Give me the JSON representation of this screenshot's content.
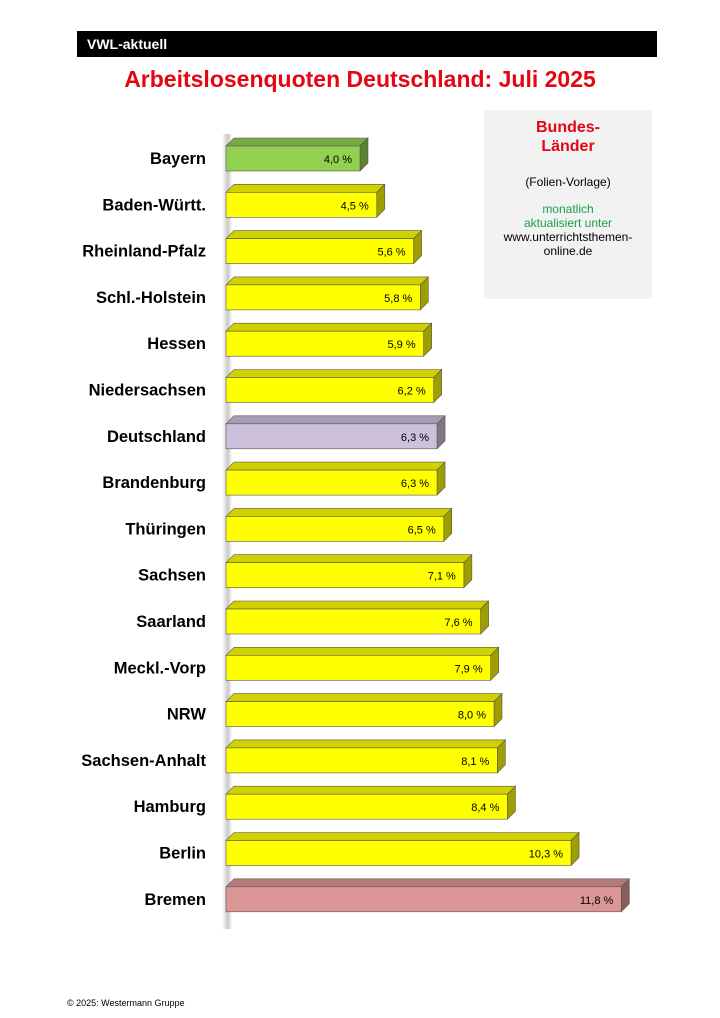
{
  "header": {
    "label": "VWL-aktuell"
  },
  "title": "Arbeitslosenquoten Deutschland: Juli 2025",
  "info_box": {
    "title_line1": "Bundes-",
    "title_line2": "Länder",
    "subtitle": "(Folien-Vorlage)",
    "note_line1": "monatlich",
    "note_line2": "aktualisiert unter",
    "url_line1": "www.unterrichtsthemen-",
    "url_line2": "online.de"
  },
  "footer": "© 2025: Westermann Gruppe",
  "colors": {
    "title": "#e30613",
    "default_bar": "#ffff00",
    "bayern_bar": "#92d050",
    "deutschland_bar": "#ccc0da",
    "bremen_bar": "#da9694",
    "info_green": "#19a04a"
  },
  "chart_data": {
    "type": "bar",
    "orientation": "horizontal",
    "title": "Arbeitslosenquoten Deutschland: Juli 2025",
    "categories": [
      "Bayern",
      "Baden-Württ.",
      "Rheinland-Pfalz",
      "Schl.-Holstein",
      "Hessen",
      "Niedersachsen",
      "Deutschland",
      "Brandenburg",
      "Thüringen",
      "Sachsen",
      "Saarland",
      "Meckl.-Vorp",
      "NRW",
      "Sachsen-Anhalt",
      "Hamburg",
      "Berlin",
      "Bremen"
    ],
    "values": [
      4.0,
      4.5,
      5.6,
      5.8,
      5.9,
      6.2,
      6.3,
      6.3,
      6.5,
      7.1,
      7.6,
      7.9,
      8.0,
      8.1,
      8.4,
      10.3,
      11.8
    ],
    "value_labels": [
      "4,0 %",
      "4,5 %",
      "5,6 %",
      "5,8 %",
      "5,9 %",
      "6,2 %",
      "6,3 %",
      "6,3 %",
      "6,5 %",
      "7,1 %",
      "7,6 %",
      "7,9 %",
      "8,0 %",
      "8,1 %",
      "8,4 %",
      "10,3 %",
      "11,8 %"
    ],
    "bar_colors": [
      "#92d050",
      "#ffff00",
      "#ffff00",
      "#ffff00",
      "#ffff00",
      "#ffff00",
      "#ccc0da",
      "#ffff00",
      "#ffff00",
      "#ffff00",
      "#ffff00",
      "#ffff00",
      "#ffff00",
      "#ffff00",
      "#ffff00",
      "#ffff00",
      "#da9694"
    ],
    "xlim": [
      0,
      11.8
    ],
    "grid": false
  }
}
